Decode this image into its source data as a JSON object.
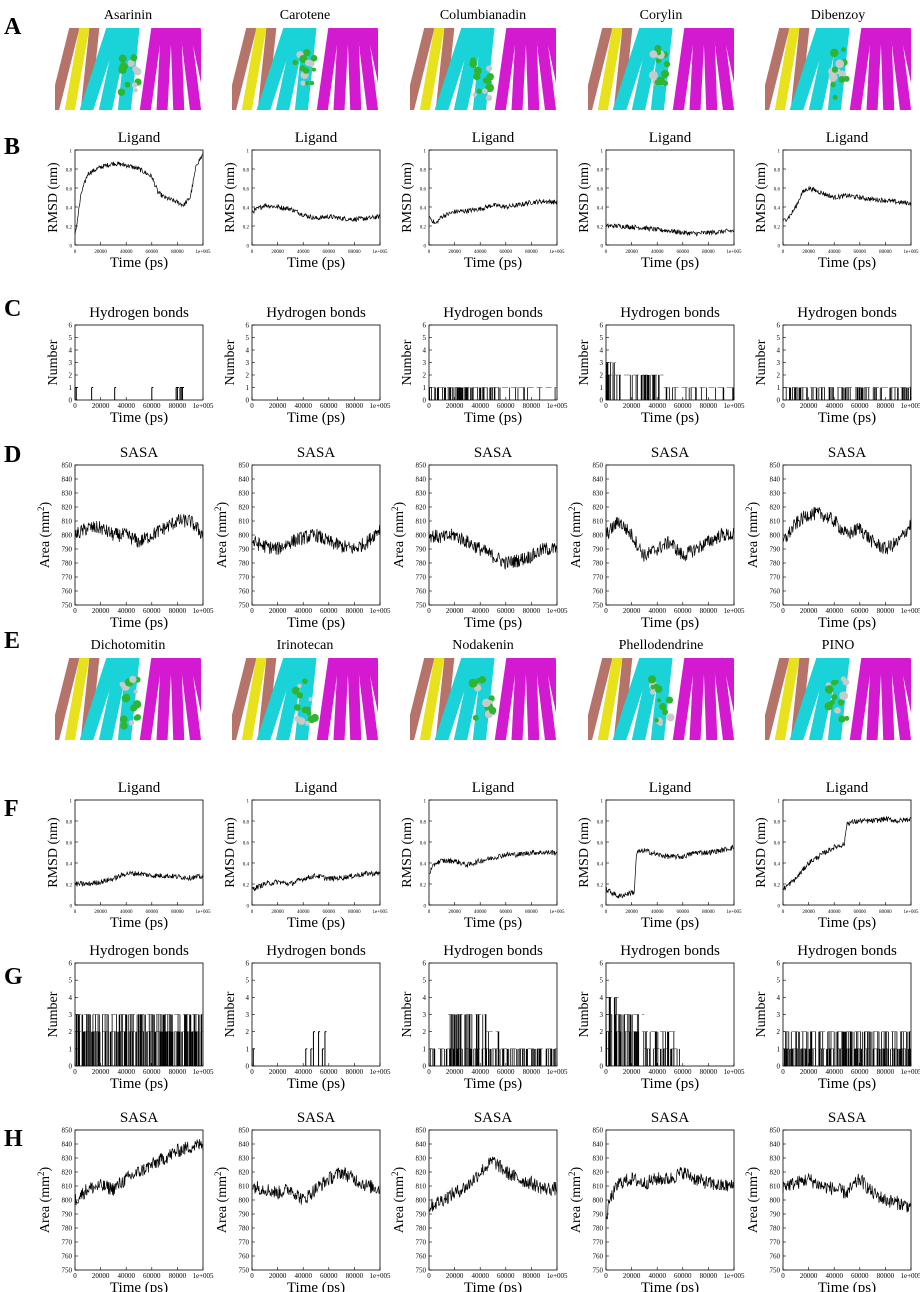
{
  "figure": {
    "panel_letters": [
      "A",
      "B",
      "C",
      "D",
      "E",
      "F",
      "G",
      "H"
    ]
  },
  "colors": {
    "protein_cyan": "#19d3d8",
    "protein_magenta": "#d41ad1",
    "protein_yellow": "#e8e21c",
    "protein_brown": "#b5736a",
    "ligand_green": "#2fb52f",
    "ligand_grey": "#c9c9c9",
    "trace": "#000000"
  },
  "group1": {
    "compounds": [
      "Asarinin",
      "Carotene",
      "Columbianadin",
      "Corylin",
      "Dibenzoy"
    ]
  },
  "group2": {
    "compounds": [
      "Dichotomitin",
      "Irinotecan",
      "Nodakenin",
      "Phellodendrine",
      "PINO"
    ]
  },
  "plot_text": {
    "rmsd_title": "Ligand",
    "hbond_title": "Hydrogen bonds",
    "sasa_title": "SASA",
    "rmsd_ylabel": "RMSD (nm)",
    "hbond_ylabel": "Number",
    "sasa_ylabel": "Area (mm",
    "sasa_ylabel_sup": "2",
    "sasa_ylabel_end": ")",
    "xlabel": "Time (ps)",
    "x_ticks": [
      "0",
      "20000",
      "40000",
      "60000",
      "80000",
      "1e+005"
    ],
    "rmsd_y_ticks": [
      "0",
      "0.2",
      "0.4",
      "0.6",
      "0.8",
      "1"
    ],
    "hbond_y_ticks": [
      "0",
      "1",
      "2",
      "3",
      "4",
      "5",
      "6"
    ],
    "sasa_y_ticks": [
      "750",
      "760",
      "770",
      "780",
      "790",
      "800",
      "810",
      "820",
      "830",
      "840",
      "850"
    ]
  },
  "chart_data": [
    {
      "type": "line",
      "panel": "B",
      "compound": "Asarinin",
      "title": "Ligand",
      "xlabel": "Time (ps)",
      "ylabel": "RMSD (nm)",
      "xlim": [
        0,
        100000
      ],
      "ylim": [
        0,
        1
      ],
      "x": [
        0,
        5000,
        10000,
        20000,
        30000,
        40000,
        50000,
        60000,
        65000,
        70000,
        80000,
        85000,
        90000,
        95000,
        100000
      ],
      "values": [
        0.1,
        0.55,
        0.75,
        0.82,
        0.86,
        0.84,
        0.8,
        0.72,
        0.55,
        0.5,
        0.45,
        0.42,
        0.5,
        0.85,
        0.95
      ]
    },
    {
      "type": "line",
      "panel": "B",
      "compound": "Carotene",
      "title": "Ligand",
      "xlabel": "Time (ps)",
      "ylabel": "RMSD (nm)",
      "xlim": [
        0,
        100000
      ],
      "ylim": [
        0,
        1
      ],
      "x": [
        0,
        10000,
        20000,
        30000,
        40000,
        50000,
        60000,
        70000,
        80000,
        90000,
        100000
      ],
      "values": [
        0.35,
        0.42,
        0.4,
        0.38,
        0.32,
        0.28,
        0.3,
        0.28,
        0.27,
        0.28,
        0.3
      ]
    },
    {
      "type": "line",
      "panel": "B",
      "compound": "Columbianadin",
      "title": "Ligand",
      "xlabel": "Time (ps)",
      "ylabel": "RMSD (nm)",
      "xlim": [
        0,
        100000
      ],
      "ylim": [
        0,
        1
      ],
      "x": [
        0,
        5000,
        10000,
        20000,
        30000,
        40000,
        50000,
        60000,
        70000,
        80000,
        90000,
        100000
      ],
      "values": [
        0.3,
        0.22,
        0.3,
        0.35,
        0.36,
        0.38,
        0.42,
        0.4,
        0.42,
        0.45,
        0.46,
        0.45
      ]
    },
    {
      "type": "line",
      "panel": "B",
      "compound": "Corylin",
      "title": "Ligand",
      "xlabel": "Time (ps)",
      "ylabel": "RMSD (nm)",
      "xlim": [
        0,
        100000
      ],
      "ylim": [
        0,
        1
      ],
      "x": [
        0,
        10000,
        20000,
        30000,
        40000,
        50000,
        60000,
        70000,
        80000,
        90000,
        100000
      ],
      "values": [
        0.2,
        0.2,
        0.19,
        0.18,
        0.16,
        0.15,
        0.13,
        0.12,
        0.13,
        0.14,
        0.15
      ]
    },
    {
      "type": "line",
      "panel": "B",
      "compound": "Dibenzoy",
      "title": "Ligand",
      "xlabel": "Time (ps)",
      "ylabel": "RMSD (nm)",
      "xlim": [
        0,
        100000
      ],
      "ylim": [
        0,
        1
      ],
      "x": [
        0,
        5000,
        10000,
        15000,
        20000,
        30000,
        40000,
        50000,
        60000,
        70000,
        80000,
        90000,
        100000
      ],
      "values": [
        0.25,
        0.3,
        0.4,
        0.55,
        0.6,
        0.55,
        0.5,
        0.52,
        0.5,
        0.48,
        0.47,
        0.45,
        0.44
      ]
    },
    {
      "type": "bar",
      "panel": "C",
      "compound": "Asarinin",
      "title": "Hydrogen bonds",
      "xlabel": "Time (ps)",
      "ylabel": "Number",
      "xlim": [
        0,
        100000
      ],
      "ylim": [
        0,
        6
      ],
      "events": [
        [
          0,
          1
        ],
        [
          1000,
          1
        ],
        [
          13000,
          1
        ],
        [
          31000,
          1
        ],
        [
          60000,
          1
        ],
        [
          79000,
          1
        ],
        [
          80000,
          1
        ],
        [
          82000,
          1
        ],
        [
          83000,
          1
        ],
        [
          84000,
          1
        ]
      ]
    },
    {
      "type": "bar",
      "panel": "C",
      "compound": "Carotene",
      "title": "Hydrogen bonds",
      "xlabel": "Time (ps)",
      "ylabel": "Number",
      "xlim": [
        0,
        100000
      ],
      "ylim": [
        0,
        6
      ],
      "events": []
    },
    {
      "type": "bar",
      "panel": "C",
      "compound": "Columbianadin",
      "title": "Hydrogen bonds",
      "xlabel": "Time (ps)",
      "ylabel": "Number",
      "xlim": [
        0,
        100000
      ],
      "ylim": [
        0,
        6
      ],
      "density": [
        [
          0,
          20000,
          1,
          0.45
        ],
        [
          20000,
          50000,
          1,
          0.55
        ],
        [
          50000,
          70000,
          1,
          0.2
        ],
        [
          70000,
          100000,
          1,
          0.1
        ]
      ]
    },
    {
      "type": "bar",
      "panel": "C",
      "compound": "Corylin",
      "title": "Hydrogen bonds",
      "xlabel": "Time (ps)",
      "ylabel": "Number",
      "xlim": [
        0,
        100000
      ],
      "ylim": [
        0,
        6
      ],
      "density": [
        [
          0,
          8000,
          3,
          0.25
        ],
        [
          0,
          45000,
          2,
          0.3
        ],
        [
          45000,
          100000,
          1,
          0.12
        ]
      ]
    },
    {
      "type": "bar",
      "panel": "C",
      "compound": "Dibenzoy",
      "title": "Hydrogen bonds",
      "xlabel": "Time (ps)",
      "ylabel": "Number",
      "xlim": [
        0,
        100000
      ],
      "ylim": [
        0,
        6
      ],
      "density": [
        [
          0,
          100000,
          1,
          0.35
        ]
      ]
    },
    {
      "type": "line",
      "panel": "D",
      "compound": "Asarinin",
      "title": "SASA",
      "xlabel": "Time (ps)",
      "ylabel": "Area (mm2)",
      "xlim": [
        0,
        100000
      ],
      "ylim": [
        750,
        850
      ],
      "x": [
        0,
        10000,
        20000,
        30000,
        40000,
        50000,
        60000,
        70000,
        80000,
        90000,
        100000
      ],
      "values": [
        800,
        805,
        805,
        800,
        800,
        795,
        800,
        805,
        810,
        810,
        800
      ]
    },
    {
      "type": "line",
      "panel": "D",
      "compound": "Carotene",
      "title": "SASA",
      "xlabel": "Time (ps)",
      "ylabel": "Area (mm2)",
      "xlim": [
        0,
        100000
      ],
      "ylim": [
        750,
        850
      ],
      "x": [
        0,
        10000,
        20000,
        30000,
        40000,
        50000,
        60000,
        70000,
        80000,
        90000,
        100000
      ],
      "values": [
        795,
        792,
        790,
        795,
        798,
        800,
        795,
        792,
        790,
        795,
        805
      ]
    },
    {
      "type": "line",
      "panel": "D",
      "compound": "Columbianadin",
      "title": "SASA",
      "xlabel": "Time (ps)",
      "ylabel": "Area (mm2)",
      "xlim": [
        0,
        100000
      ],
      "ylim": [
        750,
        850
      ],
      "x": [
        0,
        10000,
        20000,
        30000,
        40000,
        50000,
        60000,
        70000,
        80000,
        90000,
        100000
      ],
      "values": [
        800,
        798,
        800,
        795,
        790,
        785,
        780,
        782,
        785,
        790,
        790
      ]
    },
    {
      "type": "line",
      "panel": "D",
      "compound": "Corylin",
      "title": "SASA",
      "xlabel": "Time (ps)",
      "ylabel": "Area (mm2)",
      "xlim": [
        0,
        100000
      ],
      "ylim": [
        750,
        850
      ],
      "x": [
        0,
        10000,
        20000,
        30000,
        40000,
        50000,
        60000,
        70000,
        80000,
        90000,
        100000
      ],
      "values": [
        800,
        810,
        800,
        785,
        790,
        795,
        785,
        790,
        795,
        800,
        800
      ]
    },
    {
      "type": "line",
      "panel": "D",
      "compound": "Dibenzoy",
      "title": "SASA",
      "xlabel": "Time (ps)",
      "ylabel": "Area (mm2)",
      "xlim": [
        0,
        100000
      ],
      "ylim": [
        750,
        850
      ],
      "x": [
        0,
        10000,
        20000,
        30000,
        40000,
        50000,
        60000,
        70000,
        80000,
        90000,
        100000
      ],
      "values": [
        795,
        808,
        815,
        815,
        810,
        800,
        805,
        795,
        790,
        795,
        808
      ]
    },
    {
      "type": "line",
      "panel": "F",
      "compound": "Dichotomitin",
      "title": "Ligand",
      "xlabel": "Time (ps)",
      "ylabel": "RMSD (nm)",
      "xlim": [
        0,
        100000
      ],
      "ylim": [
        0,
        1
      ],
      "x": [
        0,
        10000,
        20000,
        30000,
        40000,
        50000,
        60000,
        70000,
        80000,
        90000,
        100000
      ],
      "values": [
        0.2,
        0.2,
        0.22,
        0.25,
        0.3,
        0.3,
        0.28,
        0.28,
        0.27,
        0.26,
        0.27
      ]
    },
    {
      "type": "line",
      "panel": "F",
      "compound": "Irinotecan",
      "title": "Ligand",
      "xlabel": "Time (ps)",
      "ylabel": "RMSD (nm)",
      "xlim": [
        0,
        100000
      ],
      "ylim": [
        0,
        1
      ],
      "x": [
        0,
        10000,
        20000,
        30000,
        40000,
        50000,
        60000,
        70000,
        80000,
        90000,
        100000
      ],
      "values": [
        0.15,
        0.2,
        0.22,
        0.2,
        0.25,
        0.28,
        0.25,
        0.26,
        0.28,
        0.3,
        0.3
      ]
    },
    {
      "type": "line",
      "panel": "F",
      "compound": "Nodakenin",
      "title": "Ligand",
      "xlabel": "Time (ps)",
      "ylabel": "RMSD (nm)",
      "xlim": [
        0,
        100000
      ],
      "ylim": [
        0,
        1
      ],
      "x": [
        0,
        5000,
        10000,
        20000,
        30000,
        40000,
        50000,
        60000,
        70000,
        80000,
        90000,
        100000
      ],
      "values": [
        0.3,
        0.4,
        0.42,
        0.42,
        0.38,
        0.42,
        0.45,
        0.48,
        0.48,
        0.5,
        0.5,
        0.5
      ]
    },
    {
      "type": "line",
      "panel": "F",
      "compound": "Phellodendrine",
      "title": "Ligand",
      "xlabel": "Time (ps)",
      "ylabel": "RMSD (nm)",
      "xlim": [
        0,
        100000
      ],
      "ylim": [
        0,
        1
      ],
      "x": [
        0,
        10000,
        20000,
        22000,
        24000,
        30000,
        40000,
        50000,
        60000,
        70000,
        80000,
        90000,
        100000
      ],
      "values": [
        0.15,
        0.08,
        0.12,
        0.12,
        0.5,
        0.52,
        0.48,
        0.46,
        0.46,
        0.5,
        0.5,
        0.52,
        0.55
      ]
    },
    {
      "type": "line",
      "panel": "F",
      "compound": "PINO",
      "title": "Ligand",
      "xlabel": "Time (ps)",
      "ylabel": "RMSD (nm)",
      "xlim": [
        0,
        100000
      ],
      "ylim": [
        0,
        1
      ],
      "x": [
        0,
        10000,
        20000,
        30000,
        40000,
        48000,
        50000,
        60000,
        70000,
        80000,
        90000,
        100000
      ],
      "values": [
        0.15,
        0.25,
        0.4,
        0.48,
        0.55,
        0.58,
        0.78,
        0.8,
        0.8,
        0.82,
        0.8,
        0.82
      ]
    },
    {
      "type": "bar",
      "panel": "G",
      "compound": "Dichotomitin",
      "title": "Hydrogen bonds",
      "xlabel": "Time (ps)",
      "ylabel": "Number",
      "xlim": [
        0,
        100000
      ],
      "ylim": [
        0,
        6
      ],
      "density": [
        [
          0,
          100000,
          3,
          0.35
        ],
        [
          0,
          100000,
          2,
          0.45
        ]
      ]
    },
    {
      "type": "bar",
      "panel": "G",
      "compound": "Irinotecan",
      "title": "Hydrogen bonds",
      "xlabel": "Time (ps)",
      "ylabel": "Number",
      "xlim": [
        0,
        100000
      ],
      "ylim": [
        0,
        6
      ],
      "events": [
        [
          1000,
          1
        ],
        [
          42000,
          1
        ],
        [
          46000,
          1
        ],
        [
          48000,
          2
        ],
        [
          52000,
          2
        ],
        [
          55000,
          1
        ],
        [
          57000,
          2
        ]
      ]
    },
    {
      "type": "bar",
      "panel": "G",
      "compound": "Nodakenin",
      "title": "Hydrogen bonds",
      "xlabel": "Time (ps)",
      "ylabel": "Number",
      "xlim": [
        0,
        100000
      ],
      "ylim": [
        0,
        6
      ],
      "density": [
        [
          0,
          100000,
          1,
          0.35
        ],
        [
          15000,
          45000,
          3,
          0.4
        ],
        [
          45000,
          55000,
          2,
          0.3
        ]
      ]
    },
    {
      "type": "bar",
      "panel": "G",
      "compound": "Phellodendrine",
      "title": "Hydrogen bonds",
      "xlabel": "Time (ps)",
      "ylabel": "Number",
      "xlim": [
        0,
        100000
      ],
      "ylim": [
        0,
        6
      ],
      "density": [
        [
          0,
          10000,
          4,
          0.3
        ],
        [
          0,
          30000,
          3,
          0.3
        ],
        [
          0,
          55000,
          2,
          0.35
        ],
        [
          30000,
          58000,
          1,
          0.3
        ]
      ]
    },
    {
      "type": "bar",
      "panel": "G",
      "compound": "PINO",
      "title": "Hydrogen bonds",
      "xlabel": "Time (ps)",
      "ylabel": "Number",
      "xlim": [
        0,
        100000
      ],
      "ylim": [
        0,
        6
      ],
      "density": [
        [
          0,
          100000,
          2,
          0.25
        ],
        [
          0,
          100000,
          1,
          0.4
        ]
      ]
    },
    {
      "type": "line",
      "panel": "H",
      "compound": "Dichotomitin",
      "title": "SASA",
      "xlabel": "Time (ps)",
      "ylabel": "Area (mm2)",
      "xlim": [
        0,
        100000
      ],
      "ylim": [
        750,
        850
      ],
      "x": [
        0,
        10000,
        20000,
        30000,
        40000,
        50000,
        60000,
        70000,
        80000,
        90000,
        100000
      ],
      "values": [
        800,
        808,
        810,
        808,
        815,
        820,
        825,
        830,
        835,
        838,
        840
      ]
    },
    {
      "type": "line",
      "panel": "H",
      "compound": "Irinotecan",
      "title": "SASA",
      "xlabel": "Time (ps)",
      "ylabel": "Area (mm2)",
      "xlim": [
        0,
        100000
      ],
      "ylim": [
        750,
        850
      ],
      "x": [
        0,
        10000,
        20000,
        30000,
        40000,
        50000,
        60000,
        70000,
        80000,
        90000,
        100000
      ],
      "values": [
        810,
        808,
        805,
        808,
        800,
        808,
        815,
        820,
        815,
        810,
        808
      ]
    },
    {
      "type": "line",
      "panel": "H",
      "compound": "Nodakenin",
      "title": "SASA",
      "xlabel": "Time (ps)",
      "ylabel": "Area (mm2)",
      "xlim": [
        0,
        100000
      ],
      "ylim": [
        750,
        850
      ],
      "x": [
        0,
        10000,
        20000,
        30000,
        40000,
        50000,
        60000,
        70000,
        80000,
        90000,
        100000
      ],
      "values": [
        795,
        800,
        805,
        810,
        820,
        828,
        820,
        815,
        812,
        808,
        808
      ]
    },
    {
      "type": "line",
      "panel": "H",
      "compound": "Phellodendrine",
      "title": "SASA",
      "xlabel": "Time (ps)",
      "ylabel": "Area (mm2)",
      "xlim": [
        0,
        100000
      ],
      "ylim": [
        750,
        850
      ],
      "x": [
        0,
        3000,
        10000,
        20000,
        30000,
        40000,
        50000,
        60000,
        70000,
        80000,
        90000,
        100000
      ],
      "values": [
        785,
        800,
        812,
        815,
        812,
        815,
        815,
        820,
        815,
        812,
        810,
        810
      ]
    },
    {
      "type": "line",
      "panel": "H",
      "compound": "PINO",
      "title": "SASA",
      "xlabel": "Time (ps)",
      "ylabel": "Area (mm2)",
      "xlim": [
        0,
        100000
      ],
      "ylim": [
        750,
        850
      ],
      "x": [
        0,
        10000,
        20000,
        30000,
        40000,
        50000,
        60000,
        70000,
        80000,
        90000,
        100000
      ],
      "values": [
        810,
        812,
        815,
        810,
        808,
        805,
        815,
        805,
        800,
        798,
        795
      ]
    }
  ]
}
